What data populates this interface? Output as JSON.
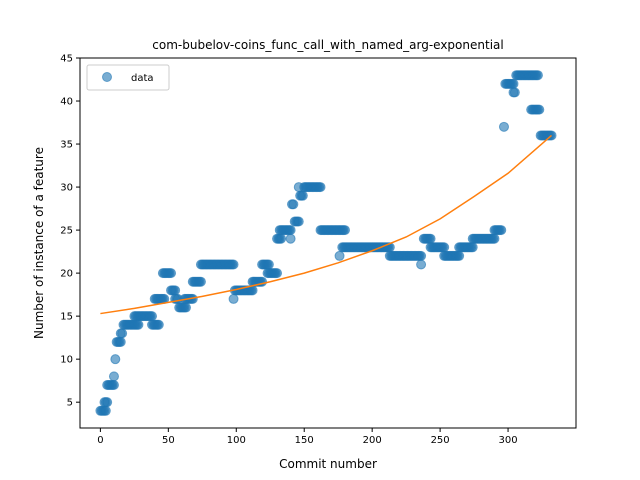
{
  "chart_data": {
    "type": "scatter",
    "title": "com-bubelov-coins_func_call_with_named_arg-exponential",
    "xlabel": "Commit number",
    "ylabel": "Number of instance of a feature",
    "xlim": [
      -15,
      350
    ],
    "ylim": [
      2,
      45
    ],
    "xticks": [
      0,
      50,
      100,
      150,
      200,
      250,
      300
    ],
    "yticks": [
      5,
      10,
      15,
      20,
      25,
      30,
      35,
      40,
      45
    ],
    "grid": false,
    "legend_position": "upper-left",
    "colors": {
      "data": "#1f77b4",
      "fit": "#ff7f0e"
    },
    "series": [
      {
        "name": "data",
        "kind": "scatter",
        "segments": [
          [
            0,
            4,
            4,
            1
          ],
          [
            3,
            5,
            5,
            1
          ],
          [
            5,
            7,
            10,
            1
          ],
          [
            10,
            8,
            10,
            1
          ],
          [
            11,
            10,
            11,
            1
          ],
          [
            12,
            12,
            15,
            1
          ],
          [
            15,
            13,
            16,
            1
          ],
          [
            17,
            14,
            28,
            1
          ],
          [
            25,
            15,
            38,
            1
          ],
          [
            38,
            14,
            43,
            1
          ],
          [
            40,
            17,
            47,
            1
          ],
          [
            46,
            20,
            52,
            1
          ],
          [
            52,
            18,
            55,
            1
          ],
          [
            55,
            17,
            57,
            1
          ],
          [
            58,
            16,
            63,
            1
          ],
          [
            62,
            17,
            68,
            1
          ],
          [
            68,
            19,
            74,
            1
          ],
          [
            74,
            21,
            98,
            1
          ],
          [
            98,
            17,
            98,
            1
          ],
          [
            99,
            18,
            112,
            1
          ],
          [
            112,
            19,
            119,
            1
          ],
          [
            119,
            21,
            124,
            1
          ],
          [
            123,
            20,
            130,
            1
          ],
          [
            130,
            24,
            133,
            1
          ],
          [
            132,
            25,
            140,
            1
          ],
          [
            140,
            24,
            140,
            1
          ],
          [
            141,
            28,
            142,
            1
          ],
          [
            143,
            26,
            146,
            1
          ],
          [
            146,
            30,
            146,
            1
          ],
          [
            147,
            29,
            149,
            1
          ],
          [
            150,
            30,
            162,
            1
          ],
          [
            162,
            25,
            180,
            1
          ],
          [
            176,
            22,
            176,
            1
          ],
          [
            178,
            23,
            213,
            1
          ],
          [
            213,
            22,
            236,
            1
          ],
          [
            236,
            21,
            236,
            1
          ],
          [
            238,
            24,
            243,
            1
          ],
          [
            243,
            23,
            253,
            1
          ],
          [
            253,
            22,
            264,
            1
          ],
          [
            264,
            23,
            274,
            1
          ],
          [
            274,
            24,
            290,
            1
          ],
          [
            290,
            25,
            295,
            1
          ],
          [
            297,
            37,
            297,
            1
          ],
          [
            298,
            42,
            304,
            1
          ],
          [
            304,
            41,
            305,
            1
          ],
          [
            306,
            43,
            322,
            1
          ],
          [
            317,
            39,
            323,
            1
          ],
          [
            324,
            36,
            332,
            1
          ]
        ]
      },
      {
        "name": "fit",
        "kind": "line",
        "x": [
          0,
          25,
          50,
          75,
          100,
          125,
          150,
          175,
          200,
          225,
          250,
          275,
          300,
          332
        ],
        "y": [
          15.3,
          15.9,
          16.6,
          17.3,
          18.1,
          19.0,
          20.0,
          21.2,
          22.6,
          24.2,
          26.3,
          28.9,
          31.6,
          36.0
        ]
      }
    ]
  }
}
